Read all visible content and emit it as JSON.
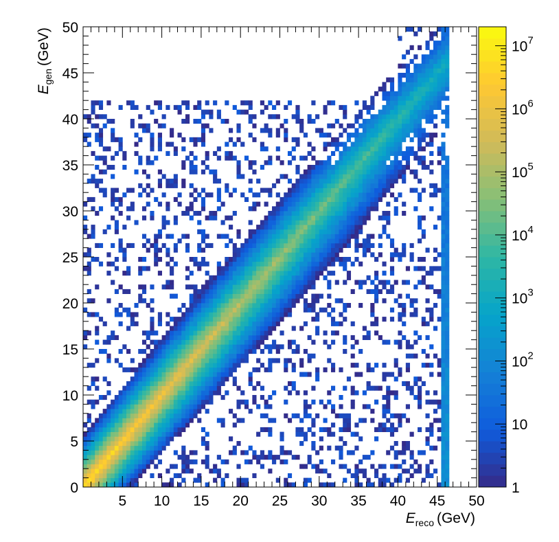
{
  "chart_data": {
    "type": "heatmap",
    "title": "",
    "xlabel": {
      "symbol": "E",
      "subscript": "reco",
      "unit": "(GeV)"
    },
    "ylabel": {
      "symbol": "E",
      "subscript": "gen",
      "unit": "(GeV)"
    },
    "xlim": [
      0,
      50
    ],
    "ylim": [
      0,
      50
    ],
    "x_ticks": [
      "5",
      "10",
      "15",
      "20",
      "25",
      "30",
      "35",
      "40",
      "45",
      "50"
    ],
    "y_ticks": [
      "0",
      "5",
      "10",
      "15",
      "20",
      "25",
      "30",
      "35",
      "40",
      "45",
      "50"
    ],
    "bins": 100,
    "color_scale": {
      "scale": "log",
      "min": 1,
      "max": 20000000,
      "tick_labels": [
        {
          "base": "1",
          "exp": ""
        },
        {
          "base": "10",
          "exp": ""
        },
        {
          "base": "10",
          "exp": "2"
        },
        {
          "base": "10",
          "exp": "3"
        },
        {
          "base": "10",
          "exp": "4"
        },
        {
          "base": "10",
          "exp": "5"
        },
        {
          "base": "10",
          "exp": "6"
        },
        {
          "base": "10",
          "exp": "7"
        }
      ],
      "palette": [
        "#352a87",
        "#0f5cdd",
        "#1481d6",
        "#06a4ca",
        "#2eb7a4",
        "#87bf77",
        "#d1bb59",
        "#fec832",
        "#f9fb0e"
      ]
    },
    "features": {
      "diagonal": {
        "from": [
          0.5,
          0.5
        ],
        "to": [
          45.5,
          45.5
        ],
        "peak_counts": 10000000
      },
      "dense_region_gen_max": 35,
      "edge_column_x": 46
    },
    "grid": false
  }
}
